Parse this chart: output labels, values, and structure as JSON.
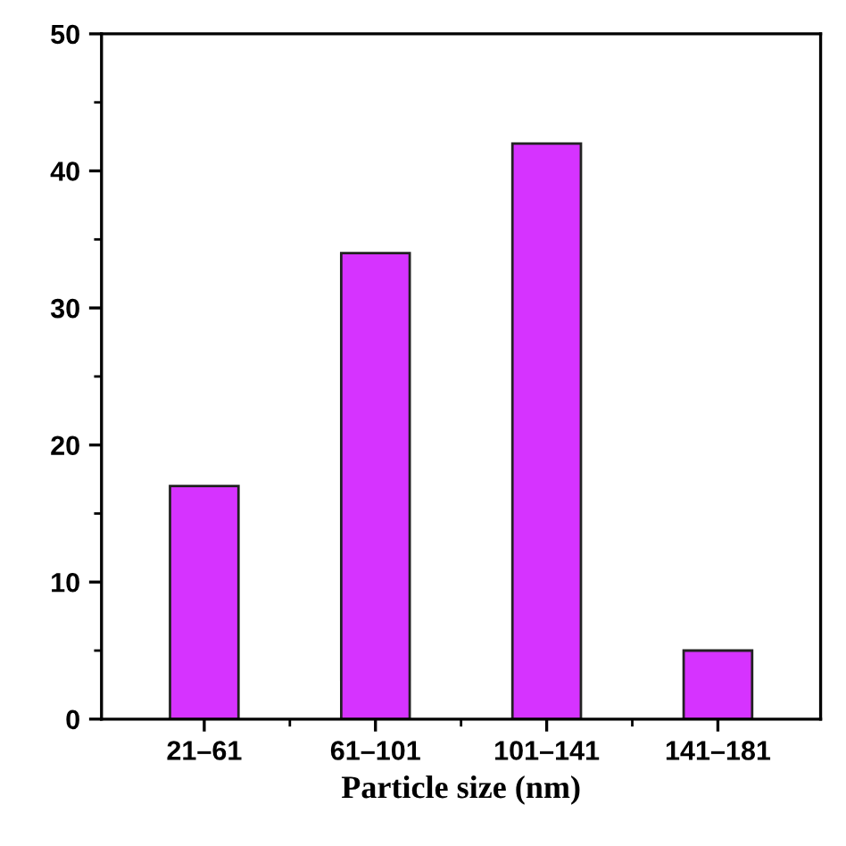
{
  "chart_data": {
    "type": "bar",
    "xlabel": "Particle size (nm)",
    "categories": [
      "21–61",
      "61–101",
      "101–141",
      "141–181"
    ],
    "values": [
      17,
      34,
      42,
      5
    ],
    "color": "#d633ff",
    "ylim": [
      0,
      50
    ],
    "yticks": [
      0,
      10,
      20,
      30,
      40,
      50
    ],
    "grid": false
  }
}
